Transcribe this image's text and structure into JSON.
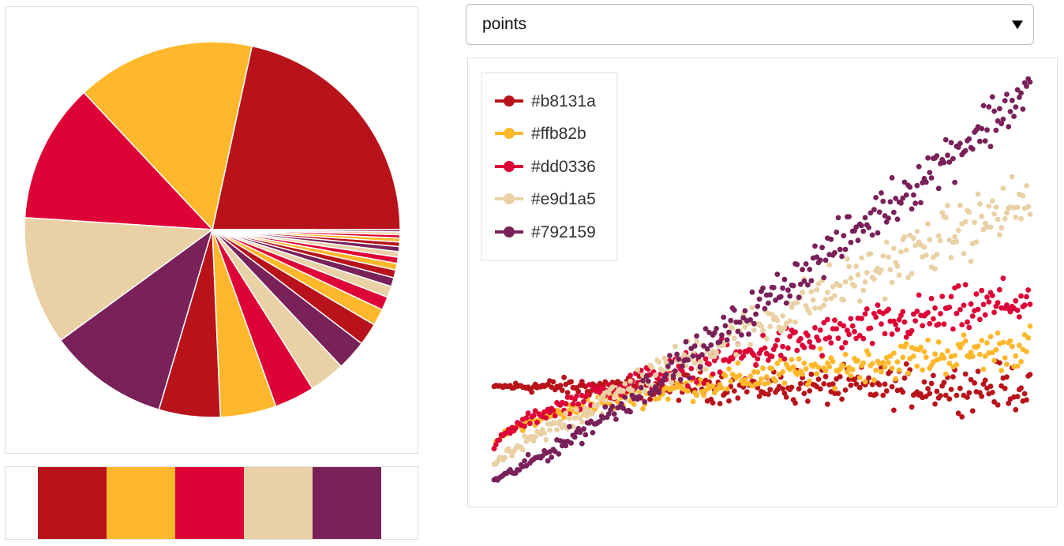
{
  "palette": [
    "#b8131a",
    "#ffb82b",
    "#dd0336",
    "#e9d1a5",
    "#792159"
  ],
  "select": {
    "value": "points"
  },
  "legend": {
    "items": [
      {
        "label": "#b8131a",
        "color": "#b8131a"
      },
      {
        "label": "#ffb82b",
        "color": "#ffb82b"
      },
      {
        "label": "#dd0336",
        "color": "#dd0336"
      },
      {
        "label": "#e9d1a5",
        "color": "#e9d1a5"
      },
      {
        "label": "#792159",
        "color": "#792159"
      }
    ]
  },
  "chart_data": [
    {
      "type": "pie",
      "title": "",
      "start_angle_deg": 0,
      "direction": "clockwise-in-screen-starting-east-going-north",
      "slices": [
        {
          "value": 22.5,
          "color": "#b8131a"
        },
        {
          "value": 16.0,
          "color": "#ffb82b"
        },
        {
          "value": 12.5,
          "color": "#dd0336"
        },
        {
          "value": 11.5,
          "color": "#e9d1a5"
        },
        {
          "value": 10.8,
          "color": "#792159"
        },
        {
          "value": 5.5,
          "color": "#b8131a"
        },
        {
          "value": 5.0,
          "color": "#ffb82b"
        },
        {
          "value": 3.6,
          "color": "#dd0336"
        },
        {
          "value": 3.2,
          "color": "#e9d1a5"
        },
        {
          "value": 2.7,
          "color": "#792159"
        },
        {
          "value": 2.0,
          "color": "#b8131a"
        },
        {
          "value": 1.5,
          "color": "#ffb82b"
        },
        {
          "value": 1.2,
          "color": "#dd0336"
        },
        {
          "value": 1.0,
          "color": "#e9d1a5"
        },
        {
          "value": 0.8,
          "color": "#792159"
        },
        {
          "value": 0.7,
          "color": "#b8131a"
        },
        {
          "value": 0.6,
          "color": "#ffb82b"
        },
        {
          "value": 0.55,
          "color": "#dd0336"
        },
        {
          "value": 0.5,
          "color": "#e9d1a5"
        },
        {
          "value": 0.45,
          "color": "#792159"
        },
        {
          "value": 0.4,
          "color": "#b8131a"
        },
        {
          "value": 0.35,
          "color": "#ffb82b"
        },
        {
          "value": 0.3,
          "color": "#dd0336"
        },
        {
          "value": 0.25,
          "color": "#e9d1a5"
        },
        {
          "value": 0.2,
          "color": "#792159"
        }
      ]
    },
    {
      "type": "scatter",
      "title": "",
      "xlabel": "",
      "ylabel": "",
      "xlim": [
        0,
        1
      ],
      "ylim": [
        -0.12,
        1.2
      ],
      "grid": false,
      "legend_position": "top-left",
      "points_per_series": 300,
      "series": [
        {
          "name": "#b8131a",
          "color": "#b8131a",
          "start": 0.2,
          "end": 0.2,
          "curve_exponent": 1.0,
          "noise_spread": 0.11
        },
        {
          "name": "#ffb82b",
          "color": "#ffb82b",
          "start": 0.0,
          "end": 0.33,
          "curve_exponent": 0.5,
          "noise_spread": 0.1
        },
        {
          "name": "#dd0336",
          "color": "#dd0336",
          "start": 0.0,
          "end": 0.48,
          "curve_exponent": 0.6,
          "noise_spread": 0.12
        },
        {
          "name": "#e9d1a5",
          "color": "#e9d1a5",
          "start": -0.05,
          "end": 0.8,
          "curve_exponent": 0.9,
          "noise_spread": 0.15
        },
        {
          "name": "#792159",
          "color": "#792159",
          "start": -0.1,
          "end": 1.16,
          "curve_exponent": 1.15,
          "noise_spread": 0.13
        }
      ]
    }
  ]
}
